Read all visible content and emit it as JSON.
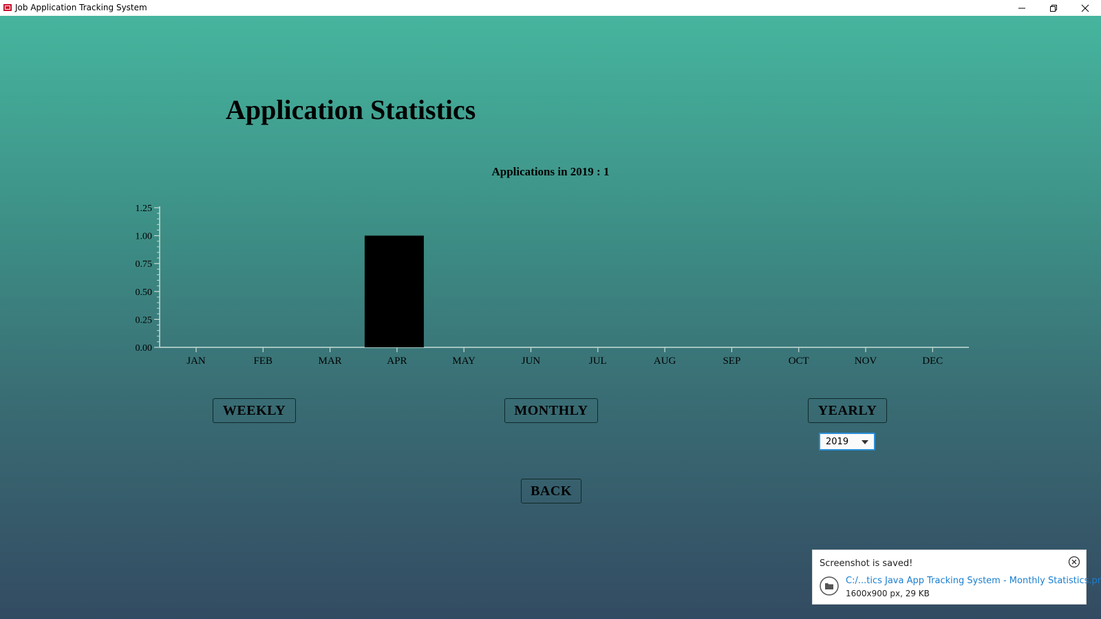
{
  "window": {
    "title": "Job Application Tracking System",
    "controls": [
      "minimize",
      "restore",
      "close"
    ]
  },
  "page": {
    "title": "Application Statistics"
  },
  "chart_data": {
    "type": "bar",
    "title": "Applications in 2019 : 1",
    "categories": [
      "JAN",
      "FEB",
      "MAR",
      "APR",
      "MAY",
      "JUN",
      "JUL",
      "AUG",
      "SEP",
      "OCT",
      "NOV",
      "DEC"
    ],
    "values": [
      0,
      0,
      0,
      1,
      0,
      0,
      0,
      0,
      0,
      0,
      0,
      0
    ],
    "yticks": [
      "0.00",
      "0.25",
      "0.50",
      "0.75",
      "1.00",
      "1.25"
    ],
    "ylim": [
      0,
      1.25
    ],
    "xlabel": "",
    "ylabel": "",
    "bar_color": "#000000",
    "grid": false
  },
  "buttons": {
    "weekly": "WEEKLY",
    "monthly": "MONTHLY",
    "yearly": "YEARLY",
    "back": "BACK"
  },
  "year_select": {
    "value": "2019"
  },
  "toast": {
    "title": "Screenshot is saved!",
    "link": "C:/...tics Java App Tracking System - Monthly Statistics.png",
    "info": "1600x900 px, 29 KB"
  },
  "colors": {
    "link": "#1a7fd0",
    "focus": "#2b8fd6",
    "bg_top": "#46b59e",
    "bg_bottom": "#334b62"
  }
}
